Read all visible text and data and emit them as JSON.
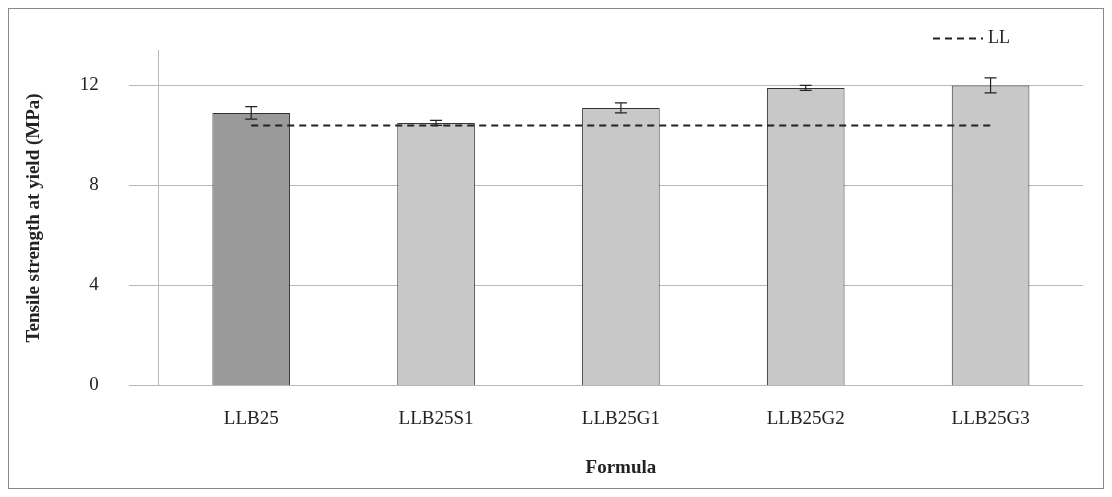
{
  "chart_data": {
    "type": "bar",
    "xlabel": "Formula",
    "ylabel": "Tensile strength at yield (MPa)",
    "categories": [
      "LLB25",
      "LLB25S1",
      "LLB25G1",
      "LLB25G2",
      "LLB25G3"
    ],
    "values": [
      10.9,
      10.5,
      11.1,
      11.9,
      12.0
    ],
    "colors": [
      "#9a9a9a",
      "#c8c8c8",
      "#c8c8c8",
      "#c8c8c8",
      "#c8c8c8"
    ],
    "errors": [
      0.25,
      0.1,
      0.2,
      0.1,
      0.3
    ],
    "ylim": [
      0,
      13.4
    ],
    "yticks": [
      0,
      4,
      8,
      12
    ],
    "grid": "y",
    "ref_lines": [
      {
        "axis": "y",
        "value": 10.4,
        "label": "LL",
        "line_style": "dashed",
        "color": "#222222"
      }
    ]
  }
}
